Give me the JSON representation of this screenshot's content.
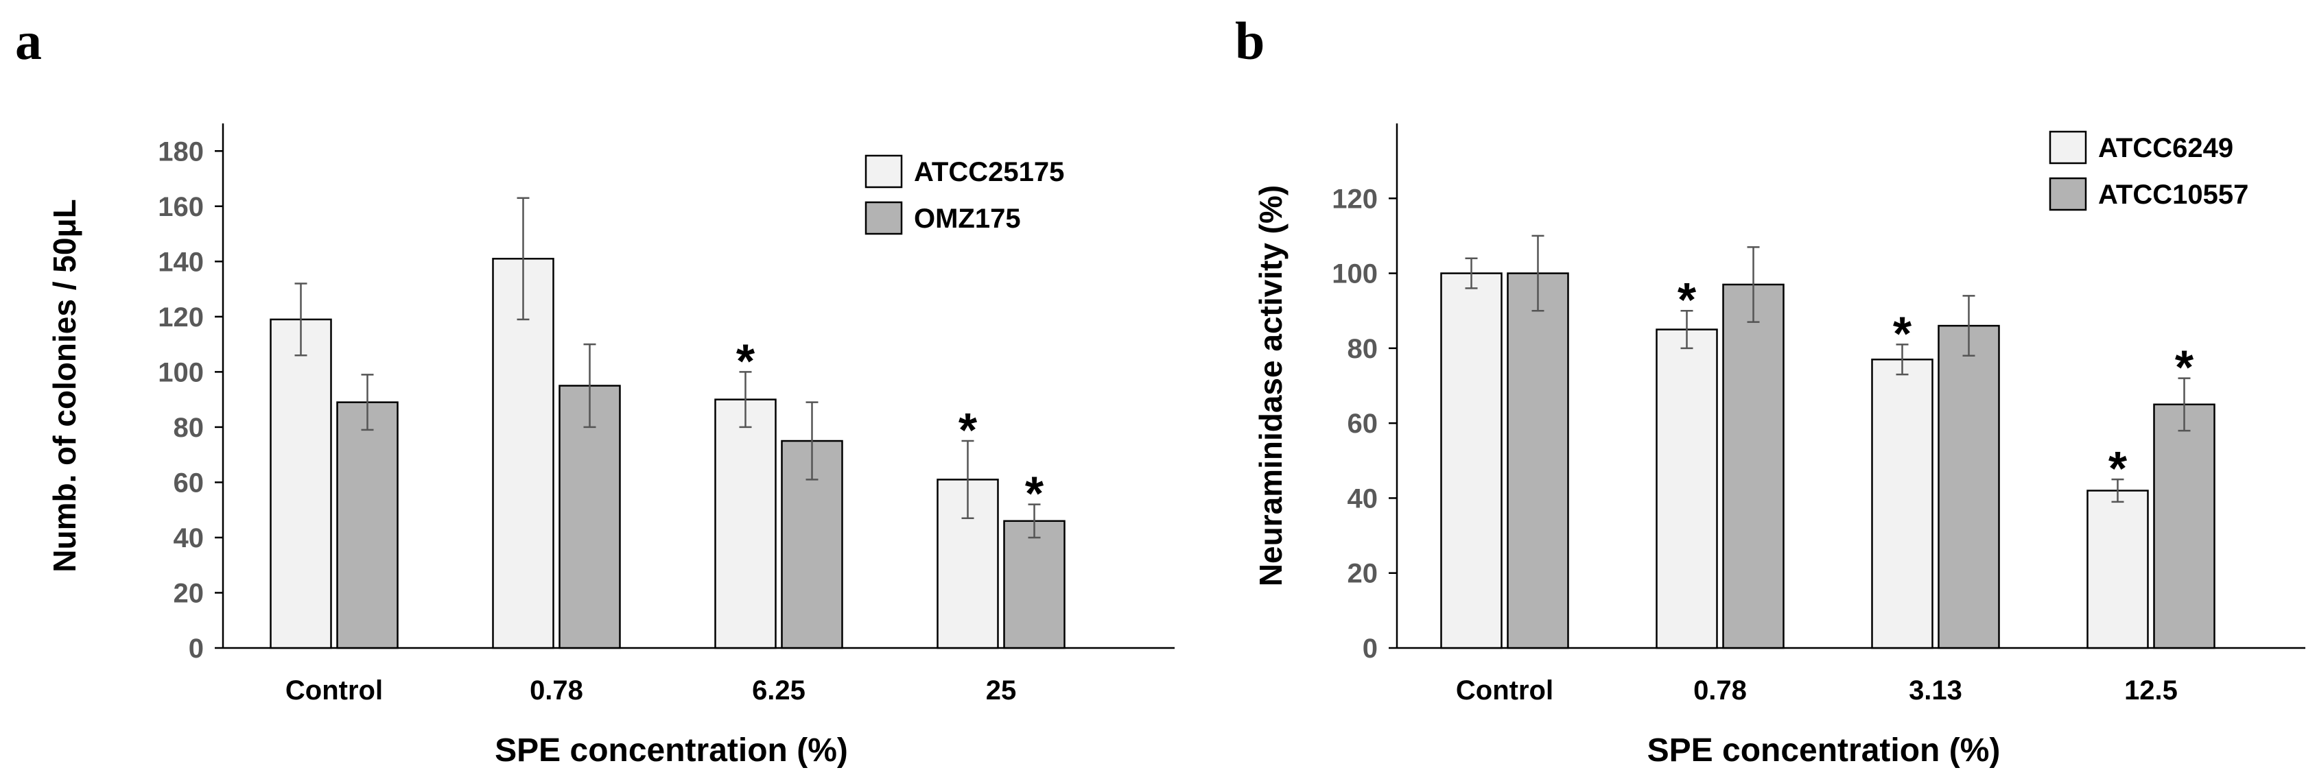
{
  "chart_data": [
    {
      "panel": "a",
      "type": "bar",
      "categories": [
        "Control",
        "0.78",
        "6.25",
        "25"
      ],
      "series": [
        {
          "name": "ATCC25175",
          "color": "#f2f2f2",
          "values": [
            119,
            141,
            90,
            61
          ],
          "errors": [
            13,
            22,
            10,
            14
          ],
          "significant": [
            false,
            false,
            true,
            true
          ]
        },
        {
          "name": "OMZ175",
          "color": "#b3b3b3",
          "values": [
            89,
            95,
            75,
            46
          ],
          "errors": [
            10,
            15,
            14,
            6
          ],
          "significant": [
            false,
            false,
            false,
            true
          ]
        }
      ],
      "yticks": [
        "0",
        "20",
        "40",
        "60",
        "80",
        "100",
        "120",
        "140",
        "160",
        "180"
      ],
      "ylim": [
        0,
        190
      ],
      "xlabel": "SPE concentration (%)",
      "ylabel": "Numb. of colonies / 50μL",
      "legend_position": "top-right",
      "significance_marker": "*"
    },
    {
      "panel": "b",
      "type": "bar",
      "categories": [
        "Control",
        "0.78",
        "3.13",
        "12.5"
      ],
      "series": [
        {
          "name": "ATCC6249",
          "color": "#f2f2f2",
          "values": [
            100,
            85,
            77,
            42
          ],
          "errors": [
            4,
            5,
            4,
            3
          ],
          "significant": [
            false,
            true,
            true,
            true
          ]
        },
        {
          "name": "ATCC10557",
          "color": "#b3b3b3",
          "values": [
            100,
            97,
            86,
            65
          ],
          "errors": [
            10,
            10,
            8,
            7
          ],
          "significant": [
            false,
            false,
            false,
            true
          ]
        }
      ],
      "yticks": [
        "0",
        "20",
        "40",
        "60",
        "80",
        "100",
        "120"
      ],
      "ylim": [
        0,
        140
      ],
      "xlabel": "SPE concentration (%)",
      "ylabel": "Neuraminidase activity (%)",
      "legend_position": "top-right",
      "significance_marker": "*"
    }
  ]
}
